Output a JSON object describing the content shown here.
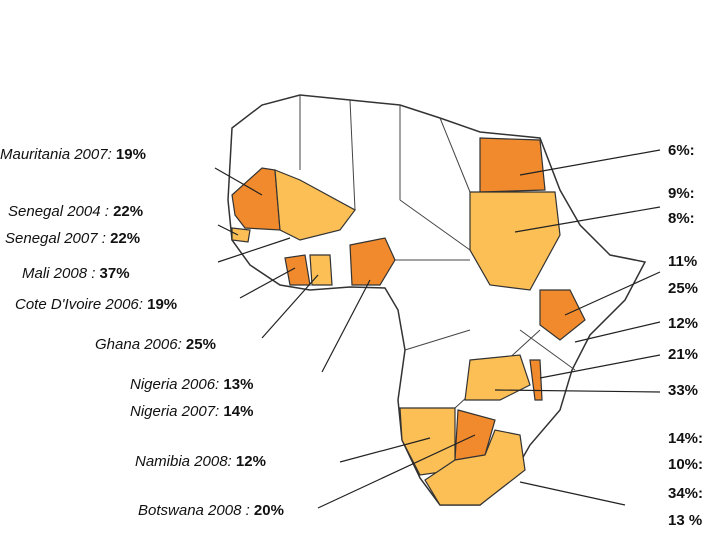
{
  "left_labels": [
    {
      "label": "Mauritania 2007:",
      "value": "19%"
    },
    {
      "label": "Senegal  2004 :",
      "value": "22%"
    },
    {
      "label": "Senegal  2007 :",
      "value": "22%"
    },
    {
      "label": "Mali 2008 :",
      "value": "37%"
    },
    {
      "label": "Cote D'Ivoire 2006:",
      "value": "19%"
    },
    {
      "label": "Ghana 2006:",
      "value": "25%"
    },
    {
      "label": "Nigeria 2006:",
      "value": "13%"
    },
    {
      "label": "Nigeria 2007:",
      "value": "14%"
    },
    {
      "label": "Namibia 2008:",
      "value": "12%"
    },
    {
      "label": "Botswana 2008 :",
      "value": "20%"
    }
  ],
  "right_labels": [
    "6%:",
    "9%:",
    "8%:",
    "11%",
    "25%",
    "12%",
    "21%",
    "33%",
    "14%:",
    "10%:",
    "34%:",
    "13 %"
  ]
}
